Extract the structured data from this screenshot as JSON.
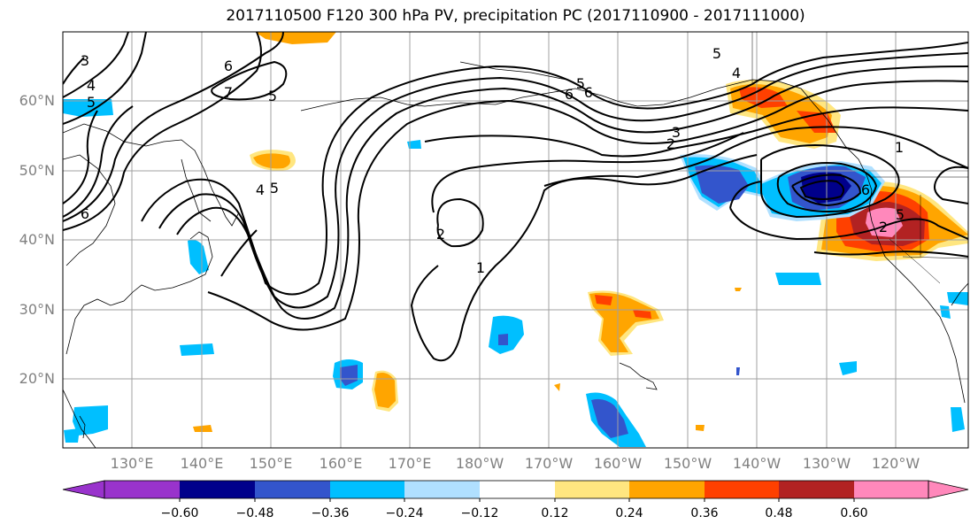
{
  "title": "2017110500 F120 300 hPa PV, precipitation PC (2017110900 - 2017111000)",
  "latitude_labels": [
    "60°N",
    "50°N",
    "40°N",
    "30°N",
    "20°N"
  ],
  "longitude_labels": [
    "130°E",
    "140°E",
    "150°E",
    "160°E",
    "170°E",
    "180°W",
    "170°W",
    "160°W",
    "150°W",
    "140°W",
    "130°W",
    "120°W"
  ],
  "colorbar": {
    "ticks": [
      "−0.60",
      "−0.48",
      "−0.36",
      "−0.24",
      "−0.12",
      "0.12",
      "0.24",
      "0.36",
      "0.48",
      "0.60"
    ],
    "colors": [
      "#9933cc",
      "#00008b",
      "#3355cc",
      "#00bfff",
      "#b0e0ff",
      "#ffffff",
      "#ffe680",
      "#ffa500",
      "#ff4000",
      "#b22222",
      "#ff88bb"
    ]
  },
  "contour_labels": [
    "3",
    "4",
    "5",
    "6",
    "5",
    "6",
    "7",
    "6",
    "5",
    "5",
    "4",
    "3",
    "2",
    "1",
    "2",
    "1",
    "2",
    "4",
    "5",
    "6",
    "6",
    "5"
  ]
}
